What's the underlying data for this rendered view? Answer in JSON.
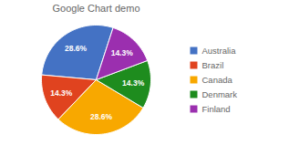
{
  "chart_data": {
    "type": "pie",
    "title": "Google Chart demo",
    "categories": [
      "Australia",
      "Brazil",
      "Canada",
      "Denmark",
      "Finland"
    ],
    "values": [
      28.6,
      14.3,
      28.6,
      14.3,
      14.3
    ],
    "value_labels": [
      "28.6%",
      "14.3%",
      "28.6%",
      "14.3%",
      "14.3%"
    ],
    "colors": [
      "#4472C4",
      "#E0431F",
      "#F8A800",
      "#1E8C1E",
      "#9B2FAF"
    ],
    "data_labels": true,
    "legend": "right"
  }
}
